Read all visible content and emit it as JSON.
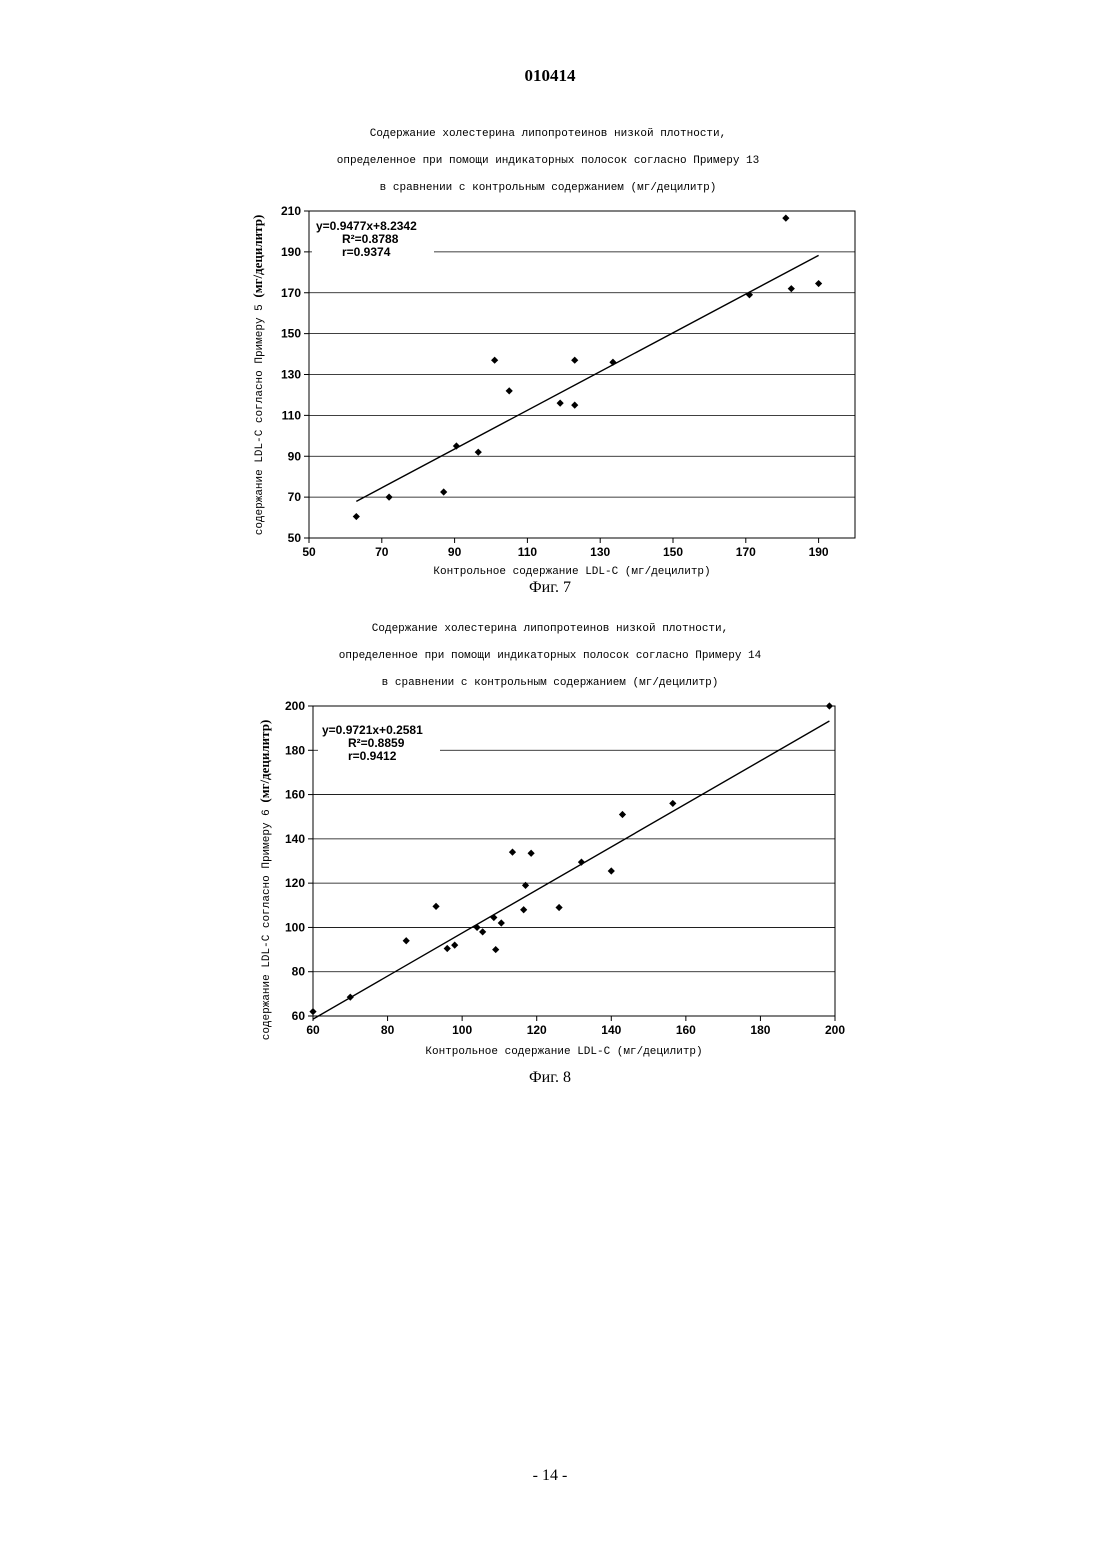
{
  "header": {
    "doc_number": "010414"
  },
  "footer": {
    "page_number": "- 14 -"
  },
  "chart_data": [
    {
      "type": "scatter",
      "figure_label": "Фиг. 7",
      "title_lines": [
        "Содержание  холестерина  липопротеинов  низкой  плотности,",
        "определенное при помощи индикаторных полосок согласно Примеру 13",
        "в сравнении с контрольным содержанием (мг/децилитр)"
      ],
      "xlabel": "Контрольное содержание LDL-C (мг/децилитр)",
      "ylabel_mono": "содержание LDL-C согласно Примеру 5 ",
      "ylabel_serif": "(мг/децилитр)",
      "xlim": [
        50,
        200
      ],
      "ylim": [
        50,
        210
      ],
      "xticks": [
        50,
        70,
        90,
        110,
        130,
        150,
        170,
        190
      ],
      "yticks": [
        50,
        70,
        90,
        110,
        130,
        150,
        170,
        190,
        210
      ],
      "grid": "horizontal",
      "points": [
        [
          63,
          60.5
        ],
        [
          72,
          70
        ],
        [
          87,
          72.5
        ],
        [
          90.5,
          95
        ],
        [
          96.5,
          92
        ],
        [
          101,
          137
        ],
        [
          105,
          122
        ],
        [
          119,
          116
        ],
        [
          123,
          137
        ],
        [
          123,
          115
        ],
        [
          133.5,
          136
        ],
        [
          171,
          169
        ],
        [
          181,
          206.5
        ],
        [
          182.5,
          172
        ],
        [
          190,
          174.5
        ]
      ],
      "trendline": {
        "slope": 0.9477,
        "intercept": 8.2342,
        "x_range": [
          63,
          190
        ]
      },
      "annotations": {
        "equation": "y=0.9477x+8.2342",
        "r2": "R²=0.8788",
        "r": "r=0.9374"
      }
    },
    {
      "type": "scatter",
      "figure_label": "Фиг. 8",
      "title_lines": [
        "Содержание  холестерина  липопротеинов  низкой  плотности,",
        "определенное при помощи индикаторных полосок согласно Примеру 14",
        "в сравнении с контрольным содержанием (мг/децилитр)"
      ],
      "xlabel": "Контрольное содержание LDL-C (мг/децилитр)",
      "ylabel_mono": "содержание LDL-C согласно Примеру 6 ",
      "ylabel_serif": "(мг/децилитр)",
      "xlim": [
        60,
        200
      ],
      "ylim": [
        60,
        200
      ],
      "xticks": [
        60,
        80,
        100,
        120,
        140,
        160,
        180,
        200
      ],
      "yticks": [
        60,
        80,
        100,
        120,
        140,
        160,
        180,
        200
      ],
      "grid": "horizontal",
      "points": [
        [
          60,
          62
        ],
        [
          70,
          68.5
        ],
        [
          85,
          94
        ],
        [
          93,
          109.5
        ],
        [
          96,
          90.5
        ],
        [
          98,
          92
        ],
        [
          104,
          100
        ],
        [
          105.5,
          98
        ],
        [
          108.5,
          104.5
        ],
        [
          109,
          90
        ],
        [
          110.5,
          102
        ],
        [
          113.5,
          134
        ],
        [
          116.5,
          108
        ],
        [
          117,
          119
        ],
        [
          118.5,
          133.5
        ],
        [
          126,
          109
        ],
        [
          132,
          129.5
        ],
        [
          140,
          125.5
        ],
        [
          143,
          151
        ],
        [
          156.5,
          156
        ],
        [
          198.5,
          200
        ]
      ],
      "trendline": {
        "slope": 0.9721,
        "intercept": 0.2581,
        "x_range": [
          60,
          198.5
        ]
      },
      "annotations": {
        "equation": "y=0.9721x+0.2581",
        "r2": "R²=0.8859",
        "r": "r=0.9412"
      }
    }
  ]
}
